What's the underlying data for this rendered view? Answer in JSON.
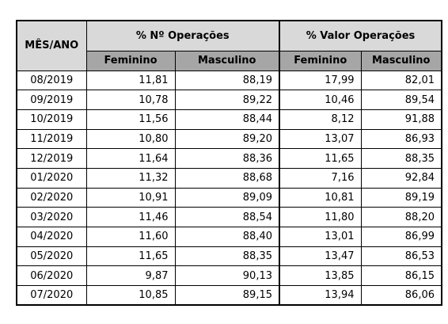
{
  "header": {
    "month": "MÊS/ANO",
    "groups": [
      "% Nº Operações",
      "% Valor Operações"
    ],
    "subheaders": [
      "Feminino",
      "Masculino",
      "Feminino",
      "Masculino"
    ]
  },
  "table": {
    "rows": [
      [
        "08/2019",
        "11,81",
        "88,19",
        "17,99",
        "82,01"
      ],
      [
        "09/2019",
        "10,78",
        "89,22",
        "10,46",
        "89,54"
      ],
      [
        "10/2019",
        "11,56",
        "88,44",
        "8,12",
        "91,88"
      ],
      [
        "11/2019",
        "10,80",
        "89,20",
        "13,07",
        "86,93"
      ],
      [
        "12/2019",
        "11,64",
        "88,36",
        "11,65",
        "88,35"
      ],
      [
        "01/2020",
        "11,32",
        "88,68",
        "7,16",
        "92,84"
      ],
      [
        "02/2020",
        "10,91",
        "89,09",
        "10,81",
        "89,19"
      ],
      [
        "03/2020",
        "11,46",
        "88,54",
        "11,80",
        "88,20"
      ],
      [
        "04/2020",
        "11,60",
        "88,40",
        "13,01",
        "86,99"
      ],
      [
        "05/2020",
        "11,65",
        "88,35",
        "13,47",
        "86,53"
      ],
      [
        "06/2020",
        "9,87",
        "90,13",
        "13,85",
        "86,15"
      ],
      [
        "07/2020",
        "10,85",
        "89,15",
        "13,94",
        "86,06"
      ]
    ]
  }
}
